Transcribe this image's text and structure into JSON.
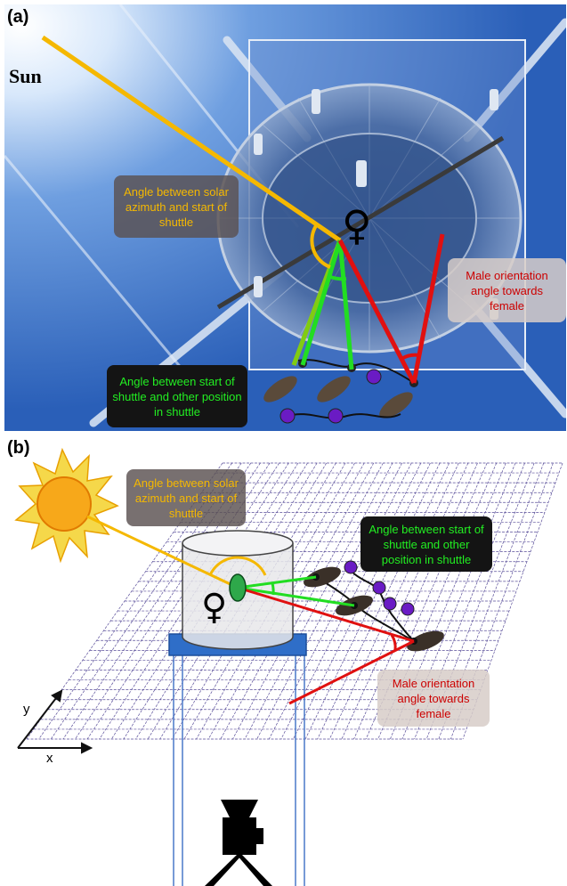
{
  "panel_a": {
    "label": "(a)",
    "sun_label": "Sun",
    "female_symbol": "♀",
    "solar_angle_text": "Angle between solar azimuth and start of shuttle",
    "shuttle_angle_text": "Angle between start of shuttle and other position in shuttle",
    "male_angle_text": "Male orientation angle towards female"
  },
  "panel_b": {
    "label": "(b)",
    "female_symbol": "♀",
    "solar_angle_text": "Angle between solar azimuth and start of shuttle",
    "shuttle_angle_text": "Angle between start of shuttle and other position in shuttle",
    "male_angle_text": "Male orientation angle towards female",
    "axis_y": "y",
    "axis_x": "x"
  },
  "colors": {
    "sun_line": "#f5b800",
    "shuttle_line": "#22dd22",
    "male_line": "#e01010",
    "marker": "#6a1bc4"
  }
}
